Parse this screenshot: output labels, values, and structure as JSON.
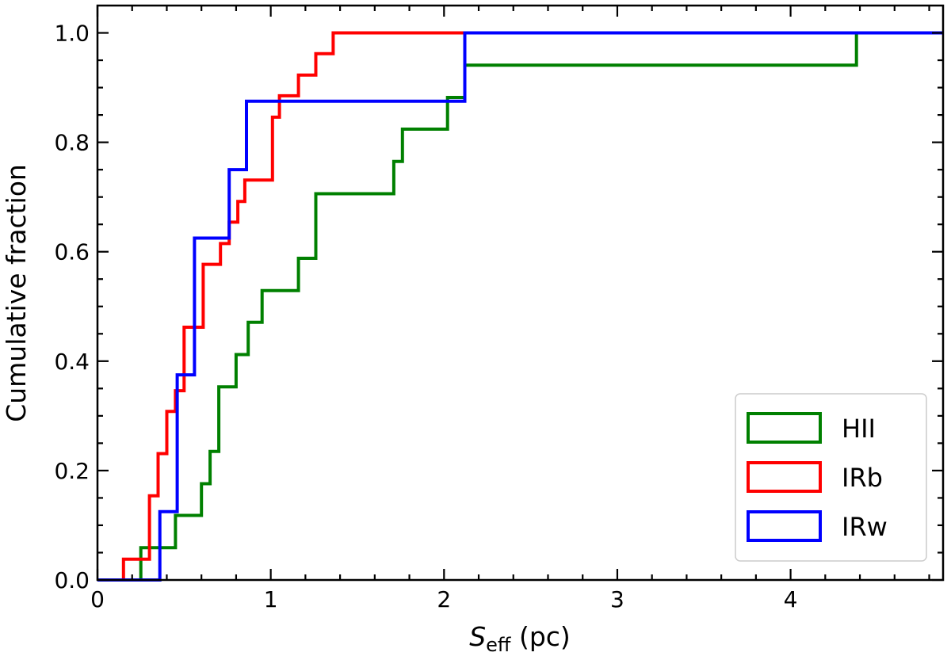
{
  "chart_data": {
    "type": "line",
    "step": true,
    "title": "",
    "xlabel": {
      "symbol": "S",
      "subscript": "eff",
      "unit": " (pc)"
    },
    "ylabel": "Cumulative fraction",
    "xlim": [
      0,
      4.88
    ],
    "ylim": [
      0,
      1.05
    ],
    "xticks": [
      0,
      1,
      2,
      3,
      4
    ],
    "xtick_labels": [
      "0",
      "1",
      "2",
      "3",
      "4"
    ],
    "yticks": [
      0,
      0.2,
      0.4,
      0.6,
      0.8,
      1.0
    ],
    "ytick_labels": [
      "0.0",
      "0.2",
      "0.4",
      "0.6",
      "0.8",
      "1.0"
    ],
    "grid": false,
    "legend_position": "lower-right",
    "series": [
      {
        "name": "HII",
        "color": "#008000",
        "x": [
          0,
          0.25,
          0.45,
          0.6,
          0.65,
          0.7,
          0.8,
          0.87,
          0.95,
          1.16,
          1.26,
          1.71,
          1.76,
          2.02,
          2.12,
          4.38,
          4.88
        ],
        "y": [
          0,
          0.059,
          0.118,
          0.176,
          0.235,
          0.353,
          0.412,
          0.471,
          0.529,
          0.588,
          0.706,
          0.765,
          0.824,
          0.882,
          0.941,
          1.0,
          1.0
        ]
      },
      {
        "name": "IRb",
        "color": "#ff0000",
        "x": [
          0,
          0.15,
          0.3,
          0.35,
          0.4,
          0.45,
          0.5,
          0.55,
          0.61,
          0.71,
          0.76,
          0.79,
          0.81,
          0.85,
          0.91,
          1.01,
          1.05,
          1.16,
          1.26,
          1.36,
          1.42,
          2.12
        ],
        "y": [
          0,
          0.038,
          0.154,
          0.231,
          0.308,
          0.346,
          0.462,
          0.462,
          0.577,
          0.615,
          0.654,
          0.654,
          0.692,
          0.731,
          0.731,
          0.846,
          0.885,
          0.923,
          0.962,
          1.0,
          1.0,
          1.0
        ]
      },
      {
        "name": "IRw",
        "color": "#0000ff",
        "x": [
          0,
          0.36,
          0.46,
          0.56,
          0.76,
          0.86,
          2.12,
          4.88
        ],
        "y": [
          0,
          0.125,
          0.375,
          0.625,
          0.75,
          0.875,
          1.0,
          1.0
        ]
      }
    ]
  }
}
